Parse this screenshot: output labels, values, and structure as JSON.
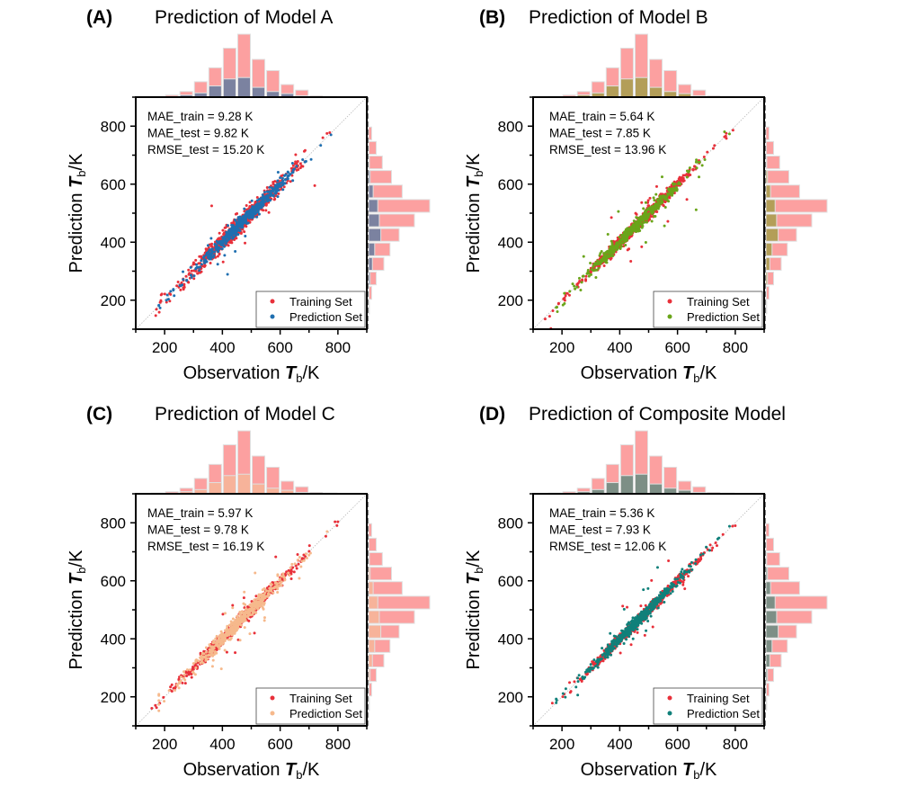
{
  "figure": {
    "panels": [
      {
        "letter": "(A)",
        "title": "Prediction of Model A",
        "metrics": [
          "MAE_train = 9.28 K",
          "MAE_test = 9.82 K",
          "RMSE_test = 15.20 K"
        ],
        "pred_color": "#1f6fb0",
        "hist_pred_color": "#7b82a0",
        "seed": 11,
        "noise_train": 14,
        "noise_pred": 12
      },
      {
        "letter": "(B)",
        "title": "Prediction of Model B",
        "metrics": [
          "MAE_train = 5.64 K",
          "MAE_test = 7.85 K",
          "RMSE_test = 13.96 K"
        ],
        "pred_color": "#6aa51a",
        "hist_pred_color": "#b39e58",
        "seed": 23,
        "noise_train": 9,
        "noise_pred": 11
      },
      {
        "letter": "(C)",
        "title": "Prediction of Model C",
        "metrics": [
          "MAE_train = 5.97 K",
          "MAE_test = 9.78 K",
          "RMSE_test = 16.19 K"
        ],
        "pred_color": "#f6b98c",
        "hist_pred_color": "#f7b39a",
        "seed": 37,
        "noise_train": 9,
        "noise_pred": 13
      },
      {
        "letter": "(D)",
        "title": "Prediction of Composite Model",
        "metrics": [
          "MAE_train = 5.36 K",
          "MAE_test = 7.93 K",
          "RMSE_test = 12.06 K"
        ],
        "pred_color": "#10807a",
        "hist_pred_color": "#7d8f86",
        "seed": 51,
        "noise_train": 8,
        "noise_pred": 10
      }
    ]
  },
  "chart_data": [
    {
      "type": "scatter",
      "title": "Prediction of Model A",
      "xlabel": "Observation Tb/K",
      "ylabel": "Prediction Tb/K",
      "xlim": [
        100,
        900
      ],
      "ylim": [
        100,
        900
      ],
      "xticks": [
        "200",
        "400",
        "600",
        "800"
      ],
      "yticks": [
        "200",
        "400",
        "600",
        "800"
      ],
      "legend": [
        "Training Set",
        "Prediction Set"
      ],
      "legend_position": "bottom-right",
      "reference_line": "y = x",
      "hist_bins": [
        100,
        150,
        200,
        250,
        300,
        350,
        400,
        450,
        500,
        550,
        600,
        650,
        700,
        750,
        800,
        850,
        900
      ],
      "top_hist_train": [
        0.3,
        0.5,
        1.5,
        4,
        11,
        21,
        35,
        45,
        27,
        19,
        9,
        5,
        1,
        0.5,
        0,
        0
      ],
      "top_hist_pred": [
        0.1,
        0.2,
        0.5,
        1.5,
        3,
        8,
        13,
        14,
        7,
        4,
        2.5,
        1,
        0.3,
        0,
        0,
        0
      ],
      "right_hist_train": [
        0,
        0.5,
        2,
        5,
        10,
        14,
        20,
        30,
        40,
        22,
        15,
        9,
        5,
        2,
        0,
        0
      ],
      "right_hist_pred": [
        0,
        0.1,
        0.3,
        1,
        2.5,
        4,
        8,
        7,
        6,
        3,
        1,
        0.5,
        0.2,
        0,
        0,
        0
      ]
    },
    {
      "type": "scatter",
      "title": "Prediction of Model B",
      "xlabel": "Observation Tb/K",
      "ylabel": "Prediction Tb/K",
      "xlim": [
        100,
        900
      ],
      "ylim": [
        100,
        900
      ],
      "xticks": [
        "200",
        "400",
        "600",
        "800"
      ],
      "yticks": [
        "200",
        "400",
        "600",
        "800"
      ],
      "legend": [
        "Training Set",
        "Prediction Set"
      ],
      "legend_position": "bottom-right",
      "reference_line": "y = x",
      "hist_bins": [
        100,
        150,
        200,
        250,
        300,
        350,
        400,
        450,
        500,
        550,
        600,
        650,
        700,
        750,
        800,
        850,
        900
      ],
      "top_hist_train": [
        0.3,
        0.5,
        1.5,
        4,
        11,
        21,
        35,
        45,
        27,
        19,
        9,
        5,
        1,
        0.5,
        0,
        0
      ],
      "top_hist_pred": [
        0.1,
        0.2,
        0.5,
        1.5,
        3,
        8,
        13,
        14,
        7,
        4,
        2.5,
        1,
        0.3,
        0,
        0,
        0
      ],
      "right_hist_train": [
        0,
        0.5,
        2,
        5,
        10,
        14,
        20,
        30,
        40,
        22,
        15,
        9,
        5,
        2,
        0,
        0
      ],
      "right_hist_pred": [
        0,
        0.1,
        0.3,
        1,
        2.5,
        4,
        8,
        7,
        6,
        3,
        1,
        0.5,
        0.2,
        0,
        0,
        0
      ]
    },
    {
      "type": "scatter",
      "title": "Prediction of Model C",
      "xlabel": "Observation Tb/K",
      "ylabel": "Prediction Tb/K",
      "xlim": [
        100,
        900
      ],
      "ylim": [
        100,
        900
      ],
      "xticks": [
        "200",
        "400",
        "600",
        "800"
      ],
      "yticks": [
        "200",
        "400",
        "600",
        "800"
      ],
      "legend": [
        "Training Set",
        "Prediction Set"
      ],
      "legend_position": "bottom-right",
      "reference_line": "y = x",
      "hist_bins": [
        100,
        150,
        200,
        250,
        300,
        350,
        400,
        450,
        500,
        550,
        600,
        650,
        700,
        750,
        800,
        850,
        900
      ],
      "top_hist_train": [
        0.3,
        0.5,
        1.5,
        4,
        11,
        21,
        35,
        45,
        27,
        19,
        9,
        5,
        1,
        0.5,
        0,
        0
      ],
      "top_hist_pred": [
        0.1,
        0.2,
        0.5,
        1.5,
        3,
        8,
        13,
        14,
        7,
        4,
        2.5,
        1,
        0.3,
        0,
        0,
        0
      ],
      "right_hist_train": [
        0,
        0.5,
        2,
        5,
        10,
        14,
        20,
        30,
        40,
        22,
        15,
        9,
        5,
        2,
        0,
        0
      ],
      "right_hist_pred": [
        0,
        0.1,
        0.3,
        1,
        2.5,
        4,
        8,
        7,
        6,
        3,
        1,
        0.5,
        0.2,
        0,
        0,
        0
      ]
    },
    {
      "type": "scatter",
      "title": "Prediction of Composite Model",
      "xlabel": "Observation Tb/K",
      "ylabel": "Prediction Tb/K",
      "xlim": [
        100,
        900
      ],
      "ylim": [
        100,
        900
      ],
      "xticks": [
        "200",
        "400",
        "600",
        "800"
      ],
      "yticks": [
        "200",
        "400",
        "600",
        "800"
      ],
      "legend": [
        "Training Set",
        "Prediction Set"
      ],
      "legend_position": "bottom-right",
      "reference_line": "y = x",
      "hist_bins": [
        100,
        150,
        200,
        250,
        300,
        350,
        400,
        450,
        500,
        550,
        600,
        650,
        700,
        750,
        800,
        850,
        900
      ],
      "top_hist_train": [
        0.3,
        0.5,
        1.5,
        4,
        11,
        21,
        35,
        45,
        27,
        19,
        9,
        5,
        1,
        0.5,
        0,
        0
      ],
      "top_hist_pred": [
        0.1,
        0.2,
        0.5,
        1.5,
        3,
        8,
        13,
        14,
        7,
        4,
        2.5,
        1,
        0.3,
        0,
        0,
        0
      ],
      "right_hist_train": [
        0,
        0.5,
        2,
        5,
        10,
        14,
        20,
        30,
        40,
        22,
        15,
        9,
        5,
        2,
        0,
        0
      ],
      "right_hist_pred": [
        0,
        0.1,
        0.3,
        1,
        2.5,
        4,
        8,
        7,
        6,
        3,
        1,
        0.5,
        0.2,
        0,
        0,
        0
      ]
    }
  ],
  "colors": {
    "train": "#e8303a",
    "hist_train": "#fca0a0",
    "hist_edge": "#e0e0e0",
    "axis": "#000000",
    "reference_line": "#bbbbbb"
  },
  "labels": {
    "xlabel_main": "Observation ",
    "ylabel_main": "Prediction ",
    "t_sym": "T",
    "t_sub": "b",
    "unit": "/K",
    "legend_train": "Training Set",
    "legend_pred": "Prediction Set"
  }
}
